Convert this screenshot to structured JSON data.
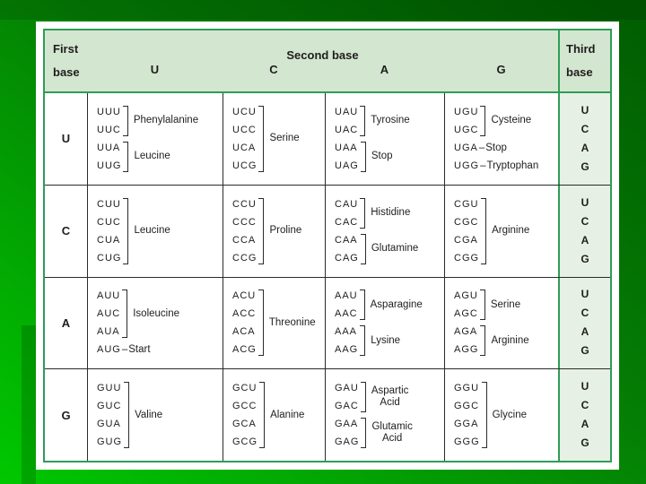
{
  "colors": {
    "slide_green_dark": "#015c01",
    "slide_green_bright": "#00c800",
    "table_border_green": "#2f9c58",
    "header_fill": "#d3e6cf",
    "third_column_fill": "#e7f0e4"
  },
  "table": {
    "header": {
      "first_base": "First\nbase",
      "second_base": "Second base",
      "second_letters": [
        "U",
        "C",
        "A",
        "G"
      ],
      "third_base": "Third\nbase"
    },
    "third_base_letters": [
      "U",
      "C",
      "A",
      "G"
    ],
    "rows": [
      {
        "first": "U",
        "cells": [
          {
            "groups": [
              {
                "type": "bracket",
                "codons": [
                  "UUU",
                  "UUC"
                ],
                "name": "Phenylalanine"
              },
              {
                "type": "bracket",
                "codons": [
                  "UUA",
                  "UUG"
                ],
                "name": "Leucine"
              }
            ]
          },
          {
            "groups": [
              {
                "type": "bracket",
                "codons": [
                  "UCU",
                  "UCC",
                  "UCA",
                  "UCG"
                ],
                "name": "Serine"
              }
            ]
          },
          {
            "groups": [
              {
                "type": "bracket",
                "codons": [
                  "UAU",
                  "UAC"
                ],
                "name": "Tyrosine"
              },
              {
                "type": "bracket",
                "codons": [
                  "UAA",
                  "UAG"
                ],
                "name": "Stop"
              }
            ]
          },
          {
            "groups": [
              {
                "type": "bracket",
                "codons": [
                  "UGU",
                  "UGC"
                ],
                "name": "Cysteine"
              },
              {
                "type": "dash",
                "codons": [
                  "UGA"
                ],
                "sep": "–",
                "name": "Stop"
              },
              {
                "type": "dash",
                "codons": [
                  "UGG"
                ],
                "sep": "–",
                "name": "Tryptophan"
              }
            ]
          }
        ]
      },
      {
        "first": "C",
        "cells": [
          {
            "groups": [
              {
                "type": "bracket",
                "codons": [
                  "CUU",
                  "CUC",
                  "CUA",
                  "CUG"
                ],
                "name": "Leucine"
              }
            ]
          },
          {
            "groups": [
              {
                "type": "bracket",
                "codons": [
                  "CCU",
                  "CCC",
                  "CCA",
                  "CCG"
                ],
                "name": "Proline"
              }
            ]
          },
          {
            "groups": [
              {
                "type": "bracket",
                "codons": [
                  "CAU",
                  "CAC"
                ],
                "name": "Histidine"
              },
              {
                "type": "bracket",
                "codons": [
                  "CAA",
                  "CAG"
                ],
                "name": "Glutamine"
              }
            ]
          },
          {
            "groups": [
              {
                "type": "bracket",
                "codons": [
                  "CGU",
                  "CGC",
                  "CGA",
                  "CGG"
                ],
                "name": "Arginine"
              }
            ]
          }
        ]
      },
      {
        "first": "A",
        "cells": [
          {
            "groups": [
              {
                "type": "bracket",
                "codons": [
                  "AUU",
                  "AUC",
                  "AUA"
                ],
                "name": "Isoleucine"
              },
              {
                "type": "dash",
                "codons": [
                  "AUG"
                ],
                "sep": "–",
                "name": "Start"
              }
            ]
          },
          {
            "groups": [
              {
                "type": "bracket",
                "codons": [
                  "ACU",
                  "ACC",
                  "ACA",
                  "ACG"
                ],
                "name": "Threonine"
              }
            ]
          },
          {
            "groups": [
              {
                "type": "bracket",
                "codons": [
                  "AAU",
                  "AAC"
                ],
                "name": "Asparagine"
              },
              {
                "type": "bracket",
                "codons": [
                  "AAA",
                  "AAG"
                ],
                "name": "Lysine"
              }
            ]
          },
          {
            "groups": [
              {
                "type": "bracket",
                "codons": [
                  "AGU",
                  "AGC"
                ],
                "name": "Serine"
              },
              {
                "type": "bracket",
                "codons": [
                  "AGA",
                  "AGG"
                ],
                "name": "Arginine"
              }
            ]
          }
        ]
      },
      {
        "first": "G",
        "cells": [
          {
            "groups": [
              {
                "type": "bracket",
                "codons": [
                  "GUU",
                  "GUC",
                  "GUA",
                  "GUG"
                ],
                "name": "Valine"
              }
            ]
          },
          {
            "groups": [
              {
                "type": "bracket",
                "codons": [
                  "GCU",
                  "GCC",
                  "GCA",
                  "GCG"
                ],
                "name": "Alanine"
              }
            ]
          },
          {
            "groups": [
              {
                "type": "bracket",
                "codons": [
                  "GAU",
                  "GAC"
                ],
                "name": "Aspartic\nAcid"
              },
              {
                "type": "bracket",
                "codons": [
                  "GAA",
                  "GAG"
                ],
                "name": "Glutamic\nAcid"
              }
            ]
          },
          {
            "groups": [
              {
                "type": "bracket",
                "codons": [
                  "GGU",
                  "GGC",
                  "GGA",
                  "GGG"
                ],
                "name": "Glycine"
              }
            ]
          }
        ]
      }
    ]
  }
}
